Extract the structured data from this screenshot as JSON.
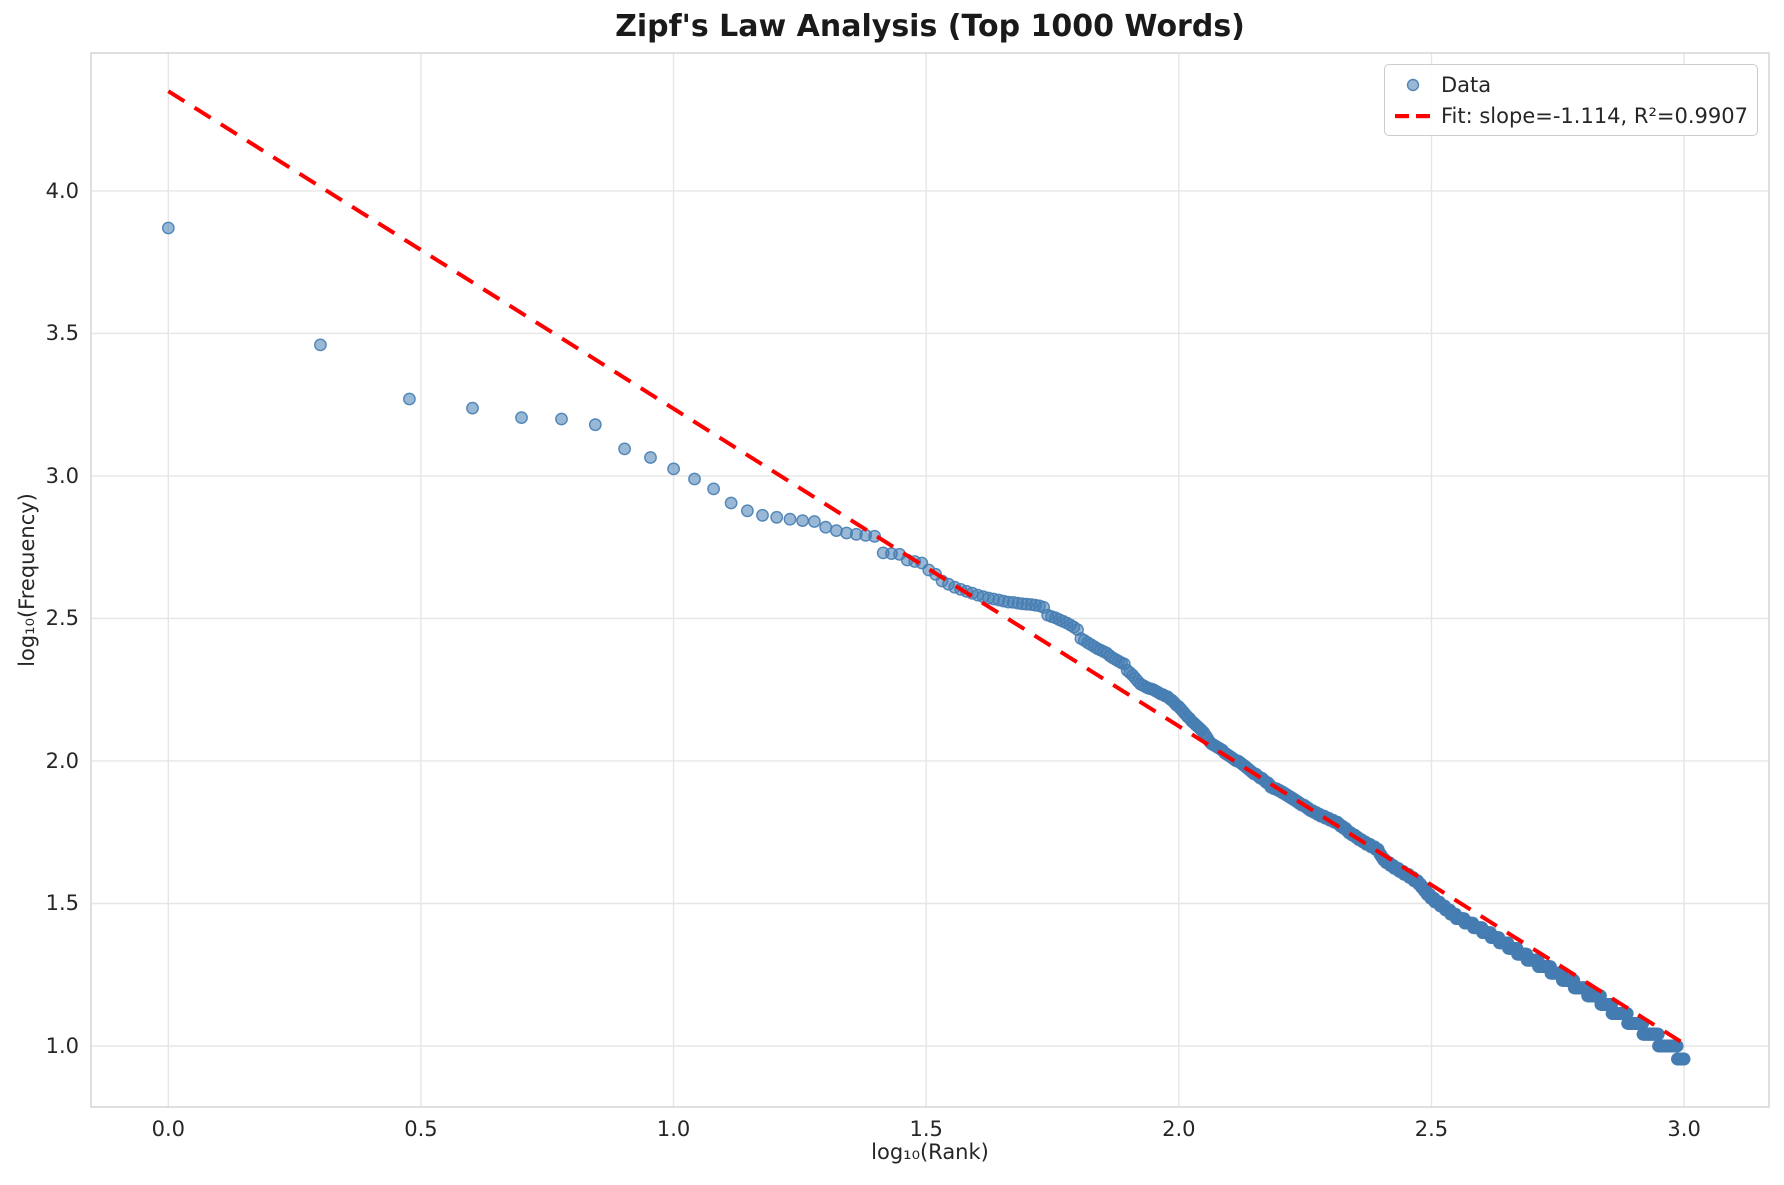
{
  "chart_data": {
    "type": "scatter",
    "title": "Zipf's Law Analysis (Top 1000 Words)",
    "xlabel": "log₁₀(Rank)",
    "ylabel": "log₁₀(Frequency)",
    "xlim": [
      -0.153,
      3.168
    ],
    "ylim": [
      0.786,
      4.484
    ],
    "xticks": [
      0.0,
      0.5,
      1.0,
      1.5,
      2.0,
      2.5,
      3.0
    ],
    "xtick_labels": [
      "0.0",
      "0.5",
      "1.0",
      "1.5",
      "2.0",
      "2.5",
      "3.0"
    ],
    "yticks": [
      1.0,
      1.5,
      2.0,
      2.5,
      3.0,
      3.5,
      4.0
    ],
    "ytick_labels": [
      "1.0",
      "1.5",
      "2.0",
      "2.5",
      "3.0",
      "3.5",
      "4.0"
    ],
    "grid": true,
    "legend_position": "upper right",
    "series": [
      {
        "name": "Data",
        "marker": "circle",
        "n_points": 1000,
        "x_definition": "log10(rank) for rank = 1..1000",
        "y_definition": "log10(word frequency), frequencies are integers",
        "curve_knots": [
          [
            0.0,
            3.87
          ],
          [
            0.301,
            3.46
          ],
          [
            0.477,
            3.27
          ],
          [
            0.602,
            3.238
          ],
          [
            0.699,
            3.205
          ],
          [
            0.778,
            3.2
          ],
          [
            0.845,
            3.18
          ],
          [
            0.903,
            3.095
          ],
          [
            0.954,
            3.065
          ],
          [
            1.0,
            3.025
          ],
          [
            1.041,
            2.99
          ],
          [
            1.079,
            2.955
          ],
          [
            1.114,
            2.905
          ],
          [
            1.146,
            2.878
          ],
          [
            1.176,
            2.862
          ],
          [
            1.204,
            2.855
          ],
          [
            1.23,
            2.848
          ],
          [
            1.255,
            2.843
          ],
          [
            1.279,
            2.84
          ],
          [
            1.301,
            2.82
          ],
          [
            1.322,
            2.808
          ],
          [
            1.342,
            2.8
          ],
          [
            1.361,
            2.795
          ],
          [
            1.38,
            2.792
          ],
          [
            1.398,
            2.788
          ],
          [
            1.405,
            2.732
          ],
          [
            1.447,
            2.725
          ],
          [
            1.462,
            2.705
          ],
          [
            1.491,
            2.695
          ],
          [
            1.505,
            2.67
          ],
          [
            1.519,
            2.655
          ],
          [
            1.531,
            2.632
          ],
          [
            1.544,
            2.62
          ],
          [
            1.556,
            2.61
          ],
          [
            1.58,
            2.595
          ],
          [
            1.602,
            2.582
          ],
          [
            1.623,
            2.572
          ],
          [
            1.643,
            2.565
          ],
          [
            1.663,
            2.558
          ],
          [
            1.69,
            2.552
          ],
          [
            1.72,
            2.546
          ],
          [
            1.732,
            2.54
          ],
          [
            1.74,
            2.512
          ],
          [
            1.756,
            2.502
          ],
          [
            1.771,
            2.49
          ],
          [
            1.785,
            2.478
          ],
          [
            1.799,
            2.462
          ],
          [
            1.806,
            2.43
          ],
          [
            1.82,
            2.415
          ],
          [
            1.833,
            2.4
          ],
          [
            1.845,
            2.39
          ],
          [
            1.857,
            2.378
          ],
          [
            1.869,
            2.362
          ],
          [
            1.881,
            2.35
          ],
          [
            1.892,
            2.34
          ],
          [
            1.897,
            2.32
          ],
          [
            1.903,
            2.31
          ],
          [
            1.914,
            2.29
          ],
          [
            1.924,
            2.27
          ],
          [
            1.934,
            2.26
          ],
          [
            1.949,
            2.25
          ],
          [
            1.96,
            2.24
          ],
          [
            1.98,
            2.222
          ],
          [
            2.0,
            2.19
          ],
          [
            2.02,
            2.15
          ],
          [
            2.05,
            2.1
          ],
          [
            2.063,
            2.063
          ],
          [
            2.083,
            2.04
          ],
          [
            2.103,
            2.014
          ],
          [
            2.122,
            1.993
          ],
          [
            2.148,
            1.958
          ],
          [
            2.176,
            1.923
          ],
          [
            2.182,
            1.91
          ],
          [
            2.208,
            1.888
          ],
          [
            2.235,
            1.856
          ],
          [
            2.261,
            1.828
          ],
          [
            2.287,
            1.804
          ],
          [
            2.314,
            1.783
          ],
          [
            2.34,
            1.747
          ],
          [
            2.366,
            1.716
          ],
          [
            2.394,
            1.688
          ],
          [
            2.406,
            1.653
          ],
          [
            2.426,
            1.628
          ],
          [
            2.446,
            1.607
          ],
          [
            2.47,
            1.58
          ],
          [
            2.5,
            1.52
          ],
          [
            2.55,
            1.453
          ],
          [
            2.6,
            1.407
          ],
          [
            2.645,
            1.36
          ],
          [
            2.69,
            1.31
          ],
          [
            2.736,
            1.267
          ],
          [
            2.78,
            1.22
          ],
          [
            2.83,
            1.168
          ],
          [
            2.86,
            1.126
          ],
          [
            2.9,
            1.084
          ],
          [
            2.95,
            1.02
          ],
          [
            2.98,
            0.993
          ],
          [
            3.0,
            0.947
          ]
        ]
      }
    ],
    "fit": {
      "label": "Fit: slope=-1.114, R²=0.9907",
      "slope": -1.114,
      "intercept": 4.35,
      "r_squared": 0.9907,
      "x_range": [
        0.0,
        3.005
      ],
      "style": "dashed"
    },
    "colors": {
      "marker": "#467db2",
      "marker_alpha": 0.55,
      "fit_line": "#ff0000",
      "grid": "#e6e6e6",
      "spine": "#d7d7d7",
      "text": "#262626"
    }
  }
}
